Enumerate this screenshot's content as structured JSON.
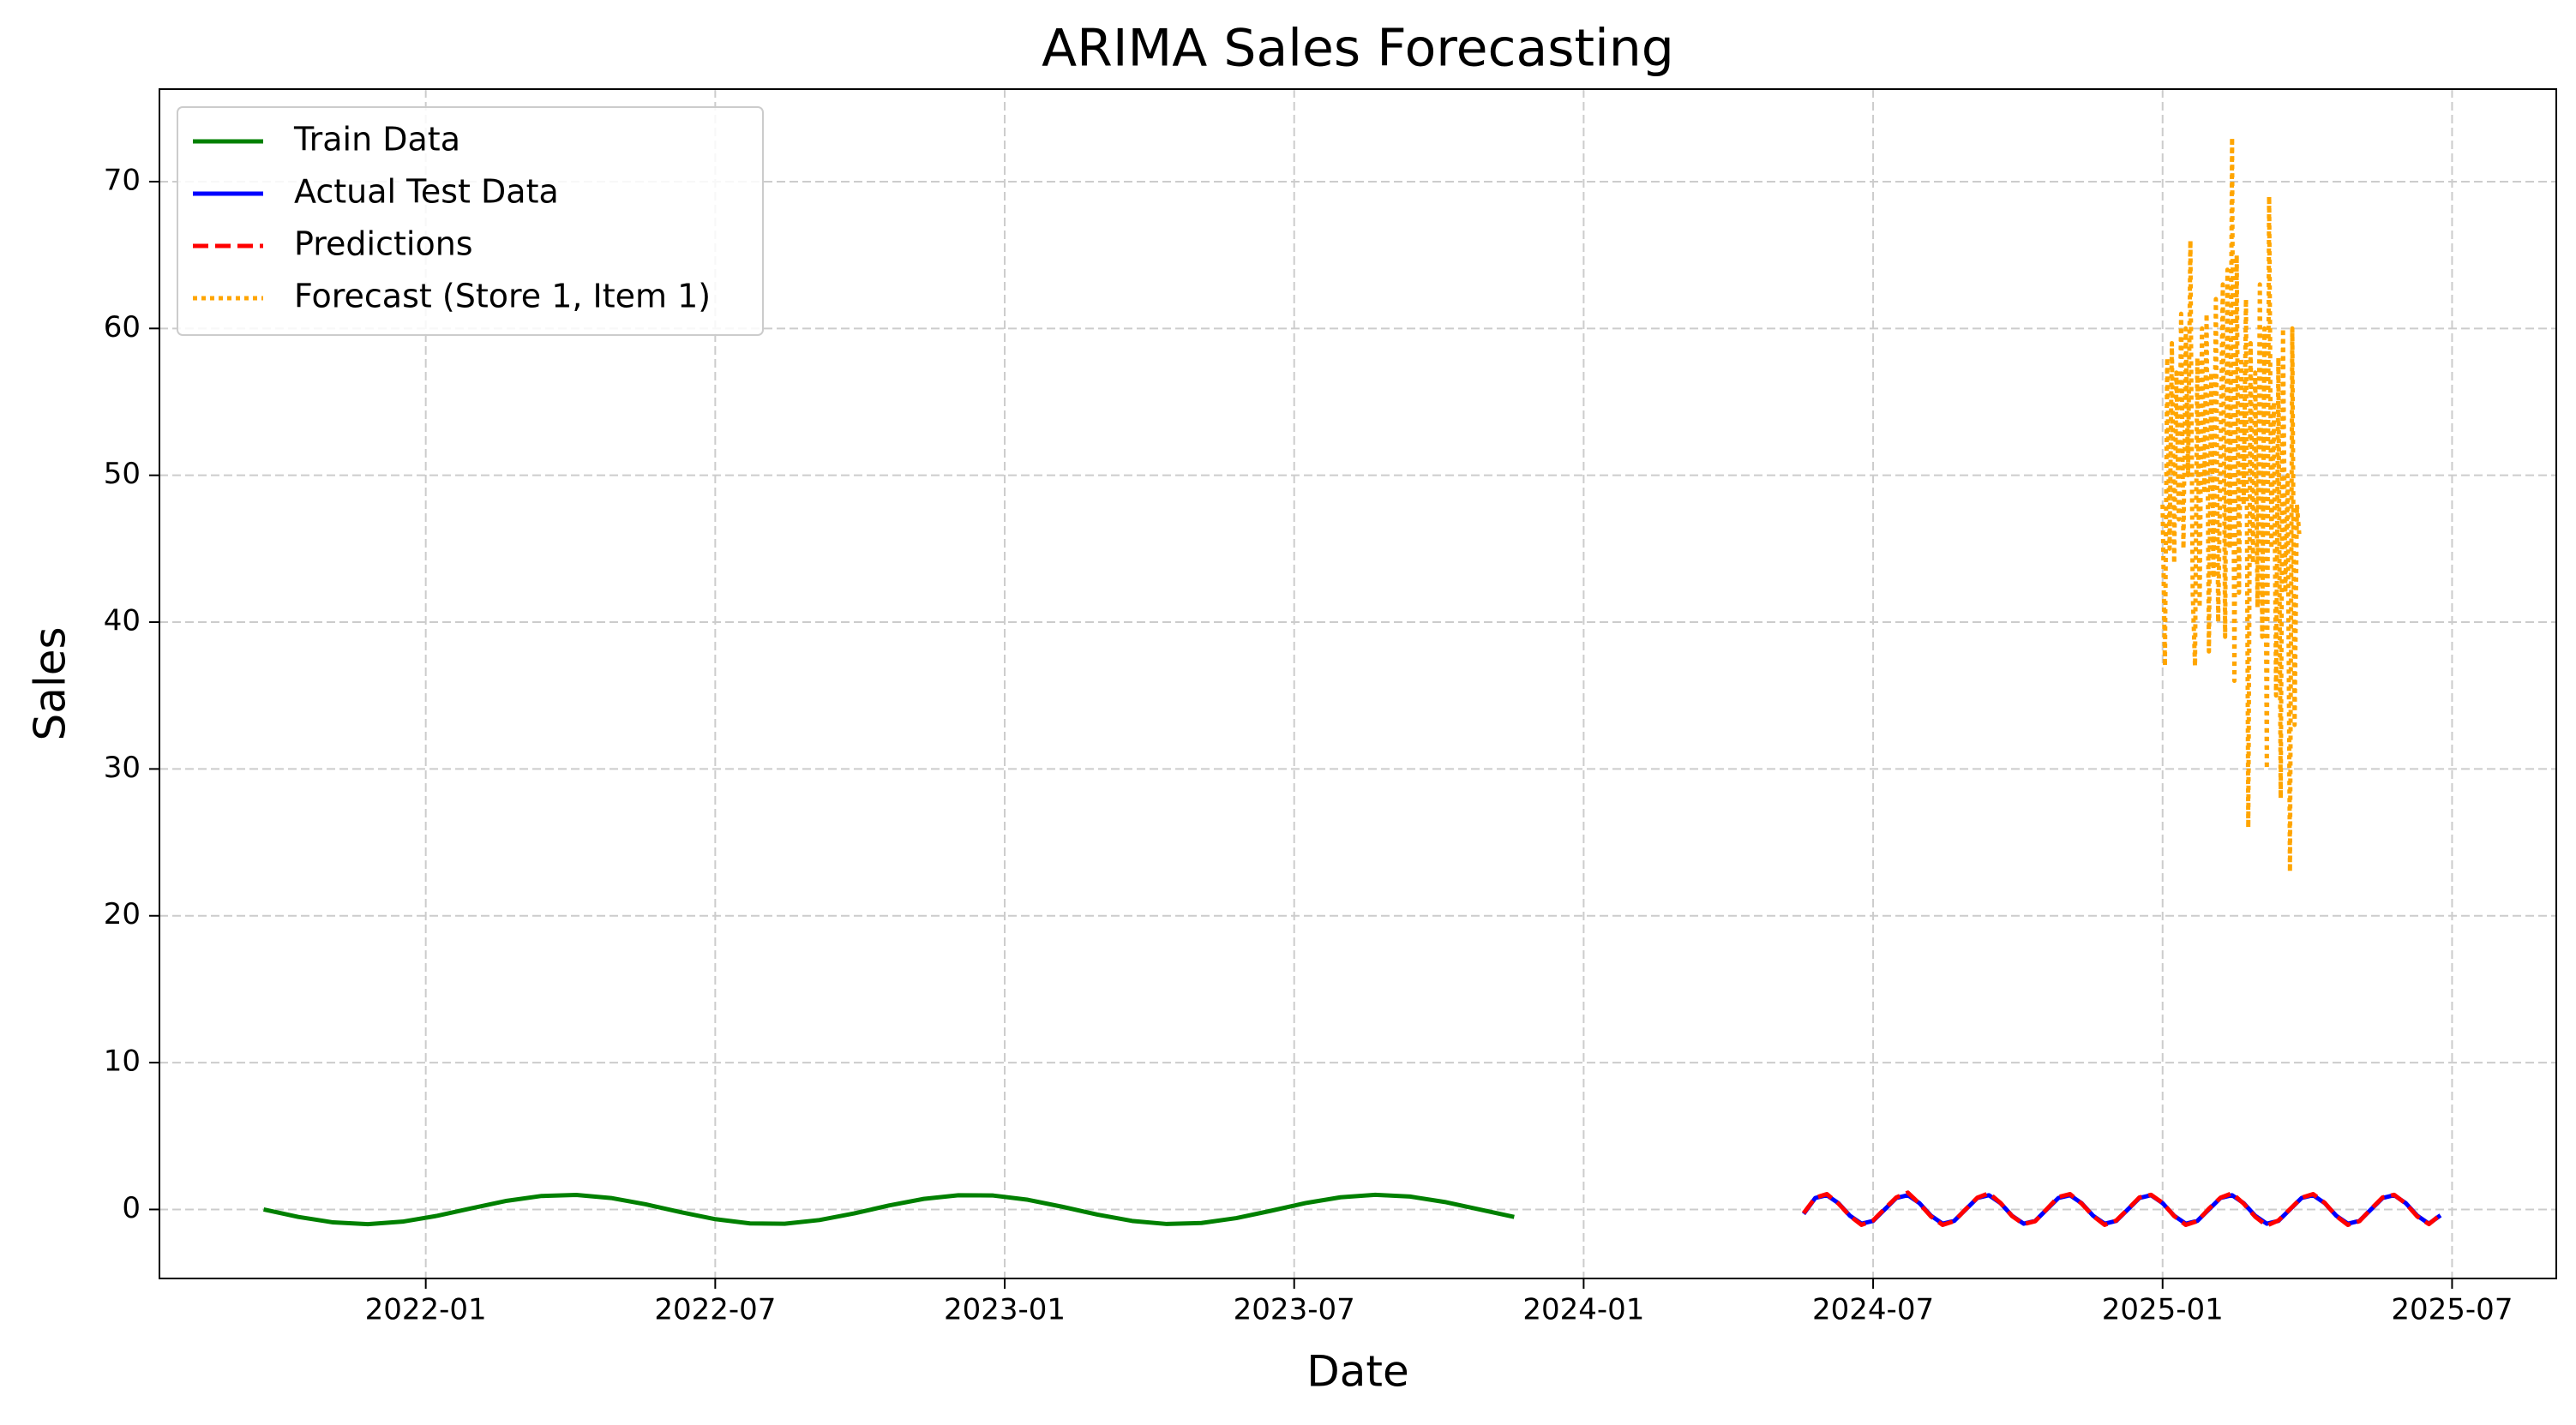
{
  "chart_data": {
    "type": "line",
    "title": "ARIMA Sales Forecasting",
    "x_label": "Date",
    "y_label": "Sales",
    "xlim": [
      2021.54,
      2025.68
    ],
    "ylim": [
      -4.7,
      76.3
    ],
    "xticks": [
      {
        "value": 2022.0,
        "label": "2022-01"
      },
      {
        "value": 2022.5,
        "label": "2022-07"
      },
      {
        "value": 2023.0,
        "label": "2023-01"
      },
      {
        "value": 2023.5,
        "label": "2023-07"
      },
      {
        "value": 2024.0,
        "label": "2024-01"
      },
      {
        "value": 2024.5,
        "label": "2024-07"
      },
      {
        "value": 2025.0,
        "label": "2025-01"
      },
      {
        "value": 2025.5,
        "label": "2025-07"
      }
    ],
    "yticks": [
      0,
      10,
      20,
      30,
      40,
      50,
      60,
      70
    ],
    "grid": true,
    "legend": "upper left",
    "series": [
      {
        "name": "Train Data",
        "color": "#008000",
        "dash": "solid",
        "x": [
          2021.72,
          2021.78,
          2021.84,
          2021.9,
          2021.96,
          2022.02,
          2022.08,
          2022.14,
          2022.2,
          2022.26,
          2022.32,
          2022.38,
          2022.44,
          2022.5,
          2022.56,
          2022.62,
          2022.68,
          2022.74,
          2022.8,
          2022.86,
          2022.92,
          2022.98,
          2023.04,
          2023.1,
          2023.16,
          2023.22,
          2023.28,
          2023.34,
          2023.4,
          2023.46,
          2023.52,
          2023.58,
          2023.64,
          2023.7,
          2023.76,
          2023.82,
          2023.88
        ],
        "values": [
          0,
          -0.51,
          -0.88,
          -1.0,
          -0.83,
          -0.43,
          0.09,
          0.59,
          0.92,
          0.99,
          0.78,
          0.35,
          -0.18,
          -0.66,
          -0.95,
          -0.97,
          -0.72,
          -0.27,
          0.27,
          0.72,
          0.97,
          0.95,
          0.66,
          0.18,
          -0.35,
          -0.78,
          -0.99,
          -0.92,
          -0.59,
          -0.09,
          0.44,
          0.83,
          1.0,
          0.88,
          0.51,
          0,
          -0.51
        ]
      },
      {
        "name": "Actual Test Data",
        "color": "#0000ff",
        "dash": "solid",
        "x": [
          2024.38,
          2024.4,
          2024.42,
          2024.44,
          2024.46,
          2024.48,
          2024.5,
          2024.52,
          2024.54,
          2024.56,
          2024.58,
          2024.6,
          2024.62,
          2024.64,
          2024.66,
          2024.68,
          2024.7,
          2024.72,
          2024.74,
          2024.76,
          2024.78,
          2024.8,
          2024.82,
          2024.84,
          2024.86,
          2024.88,
          2024.9,
          2024.92,
          2024.94,
          2024.96,
          2024.98,
          2025.0,
          2025.02,
          2025.04,
          2025.06,
          2025.08,
          2025.1,
          2025.12,
          2025.14,
          2025.16,
          2025.18,
          2025.2,
          2025.22,
          2025.24,
          2025.26,
          2025.28,
          2025.3,
          2025.32,
          2025.34,
          2025.36,
          2025.38,
          2025.4,
          2025.42,
          2025.44,
          2025.46,
          2025.48
        ],
        "values": [
          -0.3,
          0.78,
          0.97,
          0.43,
          -0.43,
          -0.97,
          -0.78,
          0,
          0.78,
          0.97,
          0.43,
          -0.43,
          -0.97,
          -0.78,
          0,
          0.78,
          0.97,
          0.43,
          -0.43,
          -0.97,
          -0.78,
          0,
          0.78,
          0.97,
          0.43,
          -0.43,
          -0.97,
          -0.78,
          0,
          0.78,
          0.97,
          0.43,
          -0.43,
          -0.97,
          -0.78,
          0,
          0.78,
          0.97,
          0.43,
          -0.43,
          -0.97,
          -0.78,
          0,
          0.78,
          0.97,
          0.43,
          -0.43,
          -0.97,
          -0.78,
          0,
          0.78,
          0.97,
          0.43,
          -0.43,
          -0.97,
          -0.4
        ]
      },
      {
        "name": "Predictions",
        "color": "#ff0000",
        "dash": "dashed",
        "x": [
          2024.38,
          2024.4,
          2024.42,
          2024.44,
          2024.46,
          2024.48,
          2024.5,
          2024.52,
          2024.54,
          2024.56,
          2024.58,
          2024.6,
          2024.62,
          2024.64,
          2024.66,
          2024.68,
          2024.7,
          2024.72,
          2024.74,
          2024.76,
          2024.78,
          2024.8,
          2024.82,
          2024.84,
          2024.86,
          2024.88,
          2024.9,
          2024.92,
          2024.94,
          2024.96,
          2024.98,
          2025.0,
          2025.02,
          2025.04,
          2025.06,
          2025.08,
          2025.1,
          2025.12,
          2025.14,
          2025.16,
          2025.18,
          2025.2,
          2025.22,
          2025.24,
          2025.26,
          2025.28,
          2025.3,
          2025.32,
          2025.34,
          2025.36,
          2025.38,
          2025.4,
          2025.42,
          2025.44,
          2025.46,
          2025.48
        ],
        "values": [
          -0.25,
          0.8,
          1.05,
          0.4,
          -0.45,
          -1.05,
          -0.75,
          0.05,
          0.82,
          1.15,
          0.4,
          -0.48,
          -1.05,
          -0.8,
          0.02,
          0.8,
          1.1,
          0.45,
          -0.45,
          -1.0,
          -0.8,
          0.03,
          0.85,
          1.05,
          0.4,
          -0.45,
          -1.05,
          -0.75,
          0.02,
          0.82,
          1.0,
          0.45,
          -0.45,
          -1.05,
          -0.8,
          0.05,
          0.8,
          1.1,
          0.4,
          -0.5,
          -1.1,
          -0.75,
          0.02,
          0.8,
          1.05,
          0.45,
          -0.45,
          -1.05,
          -0.8,
          0.03,
          0.82,
          1.0,
          0.4,
          -0.48,
          -1.0,
          -0.35
        ]
      },
      {
        "name": "Forecast (Store 1, Item 1)",
        "color": "#ffa500",
        "dash": "dotted",
        "x": [
          2025.0,
          2025.004,
          2025.008,
          2025.012,
          2025.016,
          2025.02,
          2025.024,
          2025.028,
          2025.032,
          2025.036,
          2025.04,
          2025.044,
          2025.048,
          2025.052,
          2025.056,
          2025.06,
          2025.064,
          2025.068,
          2025.072,
          2025.076,
          2025.08,
          2025.084,
          2025.088,
          2025.092,
          2025.096,
          2025.1,
          2025.104,
          2025.108,
          2025.112,
          2025.116,
          2025.12,
          2025.124,
          2025.128,
          2025.132,
          2025.136,
          2025.14,
          2025.144,
          2025.148,
          2025.152,
          2025.156,
          2025.16,
          2025.164,
          2025.168,
          2025.172,
          2025.176,
          2025.18,
          2025.184,
          2025.188,
          2025.192,
          2025.196,
          2025.2,
          2025.204,
          2025.208,
          2025.212,
          2025.216,
          2025.22,
          2025.224,
          2025.228,
          2025.232,
          2025.236
        ],
        "values": [
          48,
          37,
          58,
          45,
          59,
          44,
          57,
          47,
          61,
          45,
          60,
          50,
          66,
          42,
          37,
          58,
          41,
          60,
          49,
          61,
          38,
          57,
          43,
          62,
          40,
          51,
          63,
          39,
          64,
          45,
          73,
          36,
          65,
          42,
          58,
          48,
          62,
          26,
          59,
          44,
          57,
          41,
          63,
          39,
          60,
          30,
          69,
          45,
          55,
          35,
          58,
          28,
          60,
          42,
          50,
          23,
          60,
          33,
          48,
          46
        ]
      }
    ]
  }
}
